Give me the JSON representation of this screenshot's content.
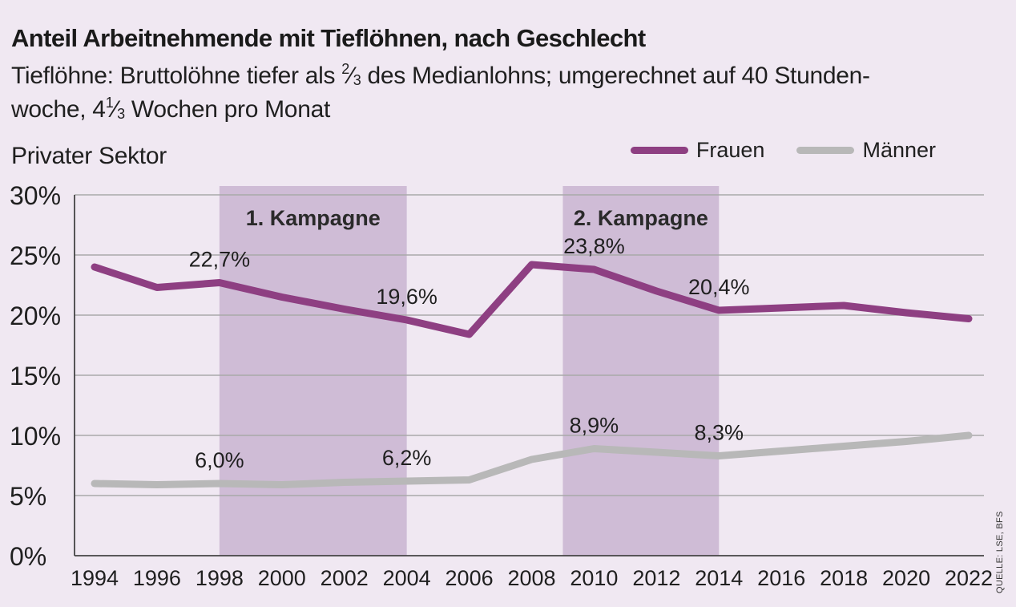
{
  "header": {
    "title": "Anteil Arbeitnehmende mit Tieflöhnen, nach Geschlecht",
    "subtitle_part1": "Tieflöhne: Bruttolöhne tiefer als ",
    "frac1_num": "2",
    "frac1_sep": "⁄",
    "frac1_den": "3",
    "subtitle_part2": " des Medianlohns; umgerechnet auf 40 Stunden-",
    "subtitle_part3": "woche, 4",
    "frac2_num": "1",
    "frac2_sep": "⁄",
    "frac2_den": "3",
    "subtitle_part4": " Wochen pro Monat",
    "section": "Privater Sektor"
  },
  "source": "QUELLE: LSE, BFS",
  "colors": {
    "women": "#8e3f82",
    "men": "#b8b8b8",
    "campaign_band": "#cfbcd6",
    "gridline": "#a9a9a9",
    "background": "#f0e8f2"
  },
  "chart_data": {
    "type": "line",
    "x": [
      1994,
      1996,
      1998,
      2000,
      2002,
      2004,
      2006,
      2008,
      2010,
      2012,
      2014,
      2016,
      2018,
      2020,
      2022
    ],
    "x_tick_labels": [
      "1994",
      "1996",
      "1998",
      "2000",
      "2002",
      "2004",
      "2006",
      "2008",
      "2010",
      "2012",
      "2014",
      "2016",
      "2018",
      "2020",
      "2022"
    ],
    "ylim": [
      0,
      30
    ],
    "y_ticks": [
      0,
      5,
      10,
      15,
      20,
      25,
      30
    ],
    "y_tick_labels": [
      "0%",
      "5%",
      "10%",
      "15%",
      "20%",
      "25%",
      "30%"
    ],
    "grid": true,
    "legend_position": "top-right",
    "series": [
      {
        "name": "Frauen",
        "color": "#8e3f82",
        "values": [
          24.0,
          22.3,
          22.7,
          21.5,
          20.5,
          19.6,
          18.4,
          24.2,
          23.8,
          22.0,
          20.4,
          20.6,
          20.8,
          20.2,
          19.7
        ]
      },
      {
        "name": "Männer",
        "color": "#b8b8b8",
        "values": [
          6.0,
          5.9,
          6.0,
          5.9,
          6.1,
          6.2,
          6.3,
          8.0,
          8.9,
          8.6,
          8.3,
          8.7,
          9.1,
          9.5,
          10.0
        ]
      }
    ],
    "annotations": [
      {
        "series": 0,
        "x": 1998,
        "text": "22,7%"
      },
      {
        "series": 0,
        "x": 2004,
        "text": "19,6%"
      },
      {
        "series": 0,
        "x": 2010,
        "text": "23,8%"
      },
      {
        "series": 0,
        "x": 2014,
        "text": "20,4%"
      },
      {
        "series": 1,
        "x": 1998,
        "text": "6,0%"
      },
      {
        "series": 1,
        "x": 2004,
        "text": "6,2%"
      },
      {
        "series": 1,
        "x": 2010,
        "text": "8,9%"
      },
      {
        "series": 1,
        "x": 2014,
        "text": "8,3%"
      }
    ],
    "bands": [
      {
        "label": "1. Kampagne",
        "from": 1998,
        "to": 2004
      },
      {
        "label": "2. Kampagne",
        "from": 2009,
        "to": 2014
      }
    ]
  }
}
